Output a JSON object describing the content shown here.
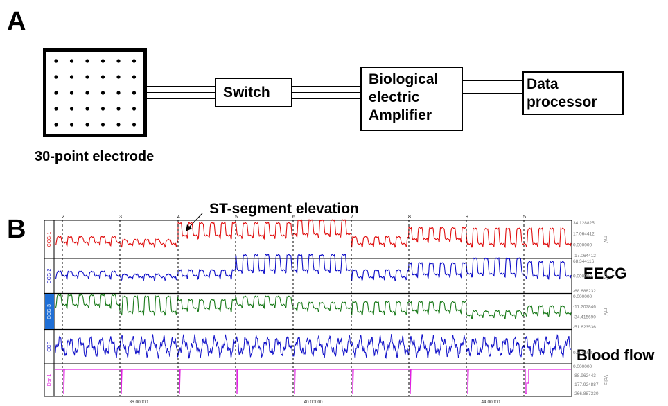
{
  "panels": {
    "a_label": "A",
    "b_label": "B"
  },
  "diagram": {
    "electrode_label": "30-point electrode",
    "switch_label": "Switch",
    "amplifier_lines": [
      "Biological",
      "electric",
      "Amplifier"
    ],
    "processor_lines": [
      "Data",
      "processor"
    ]
  },
  "recording": {
    "annotation": "ST-segment elevation",
    "eecg_label": "EECG",
    "blood_flow_label": "Blood flow",
    "marker_numbers": [
      "2",
      "3",
      "4",
      "5",
      "6",
      "7",
      "8",
      "9",
      "5"
    ],
    "time_ticks": [
      "36.00000",
      "40.00000",
      "44.00000"
    ],
    "channels": [
      {
        "name": "CCG-1",
        "color": "#e01010",
        "scale": [
          "34.128825",
          "17.064412",
          "0.000000",
          "-17.064412"
        ],
        "unit": "mV"
      },
      {
        "name": "CCG-2",
        "color": "#1010c8",
        "scale": [
          "68.344116",
          "0.000000",
          "-68.688232"
        ],
        "unit": "mV"
      },
      {
        "name": "CCG-3",
        "color": "#1a7a1a",
        "scale": [
          "0.000000",
          "-17.207846",
          "-34.415690",
          "-51.623536"
        ],
        "unit": "mV"
      },
      {
        "name": "CCF",
        "color": "#1010c8",
        "scale": [
          "0.300598"
        ],
        "unit": ""
      },
      {
        "name": "Dbr-1",
        "color": "#e020e0",
        "scale": [
          "0.000000",
          "-88.962443",
          "-177.924887",
          "-266.887330"
        ],
        "unit": "Volts"
      }
    ]
  }
}
